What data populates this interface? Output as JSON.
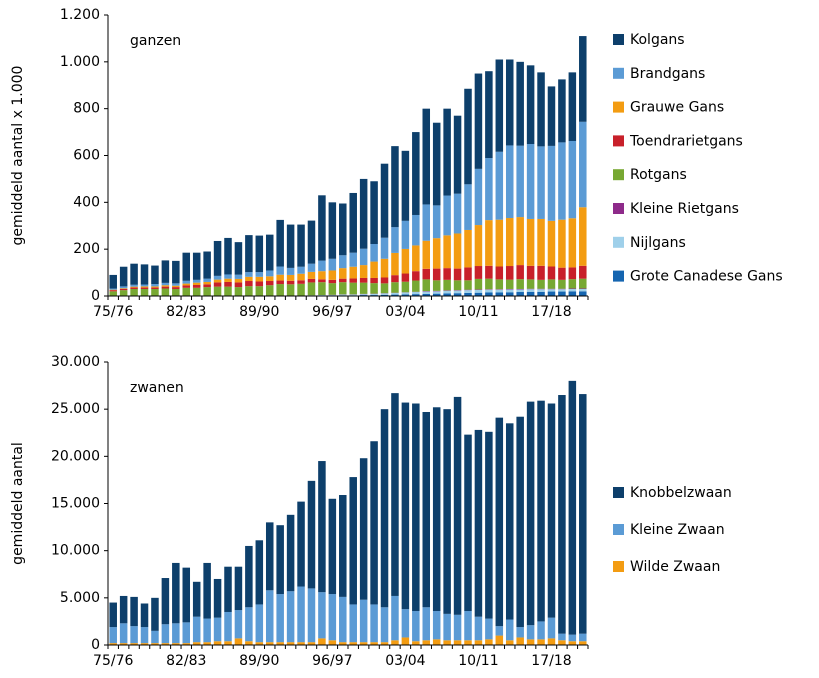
{
  "chart_data": [
    {
      "type": "stacked_bar",
      "annotation": "ganzen",
      "y_label": "gemiddeld aantal x 1.000",
      "categories": [
        "75/76",
        null,
        null,
        null,
        null,
        null,
        null,
        "82/83",
        null,
        null,
        null,
        null,
        null,
        null,
        "89/90",
        null,
        null,
        null,
        null,
        null,
        null,
        "96/97",
        null,
        null,
        null,
        null,
        null,
        null,
        "03/04",
        null,
        null,
        null,
        null,
        null,
        null,
        "10/11",
        null,
        null,
        null,
        null,
        null,
        null,
        "17/18",
        null,
        null,
        null
      ],
      "ylim": [
        0,
        1200
      ],
      "yticks": [
        0,
        200,
        400,
        600,
        800,
        {
          "value": 1000,
          "label": "1.000"
        },
        {
          "value": 1200,
          "label": "1.200"
        }
      ],
      "series": [
        {
          "name": "Kolgans",
          "color": "#0d3f6b",
          "values": [
            58,
            84,
            90,
            86,
            79,
            96,
            96,
            120,
            116,
            116,
            149,
            156,
            139,
            158,
            156,
            153,
            199,
            185,
            180,
            184,
            279,
            241,
            221,
            255,
            298,
            268,
            316,
            346,
            299,
            354,
            409,
            353,
            371,
            333,
            408,
            407,
            371,
            394,
            367,
            358,
            336,
            316,
            254,
            269,
            293,
            366
          ]
        },
        {
          "name": "Brandgans",
          "color": "#5b9bd5",
          "values": [
            5,
            8,
            8,
            8,
            10,
            10,
            10,
            12,
            12,
            14,
            16,
            18,
            18,
            20,
            20,
            25,
            35,
            30,
            30,
            35,
            45,
            50,
            55,
            60,
            70,
            75,
            90,
            110,
            120,
            130,
            155,
            140,
            170,
            170,
            195,
            240,
            265,
            290,
            310,
            305,
            320,
            310,
            320,
            330,
            330,
            365
          ]
        },
        {
          "name": "Grauwe Gans",
          "color": "#f39c12",
          "values": [
            2,
            3,
            4,
            5,
            5,
            6,
            6,
            8,
            10,
            10,
            12,
            14,
            15,
            18,
            20,
            20,
            25,
            25,
            28,
            30,
            35,
            40,
            45,
            50,
            55,
            70,
            80,
            95,
            105,
            110,
            120,
            130,
            140,
            150,
            160,
            175,
            195,
            200,
            205,
            205,
            200,
            200,
            195,
            205,
            210,
            250
          ]
        },
        {
          "name": "Toendrarietgans",
          "color": "#c8202a",
          "values": [
            5,
            5,
            6,
            6,
            6,
            8,
            8,
            10,
            12,
            12,
            18,
            20,
            20,
            22,
            20,
            18,
            15,
            15,
            15,
            15,
            12,
            14,
            15,
            18,
            20,
            22,
            25,
            30,
            35,
            40,
            45,
            50,
            50,
            50,
            55,
            55,
            55,
            55,
            58,
            60,
            58,
            60,
            55,
            52,
            50,
            55
          ]
        },
        {
          "name": "Rotgans",
          "color": "#77a832",
          "values": [
            20,
            25,
            30,
            30,
            30,
            32,
            30,
            35,
            35,
            38,
            40,
            40,
            38,
            42,
            42,
            45,
            50,
            48,
            50,
            55,
            55,
            50,
            52,
            50,
            48,
            45,
            42,
            45,
            45,
            48,
            50,
            45,
            45,
            42,
            40,
            45,
            45,
            42,
            40,
            42,
            40,
            38,
            40,
            38,
            40,
            42
          ]
        },
        {
          "name": "Kleine Rietgans",
          "color": "#8e2a8a",
          "values": [
            0,
            0,
            0,
            0,
            0,
            0,
            0,
            0,
            0,
            0,
            0,
            0,
            0,
            0,
            0,
            0,
            0,
            0,
            0,
            0,
            0,
            1,
            1,
            1,
            1,
            1,
            1,
            1,
            1,
            1,
            2,
            2,
            2,
            2,
            2,
            2,
            2,
            2,
            2,
            2,
            2,
            2,
            2,
            2,
            2,
            2
          ]
        },
        {
          "name": "Nijlgans",
          "color": "#9fd0ea",
          "values": [
            0,
            0,
            0,
            0,
            0,
            0,
            0,
            0,
            0,
            0,
            0,
            0,
            0,
            0,
            0,
            0,
            0,
            1,
            1,
            1,
            2,
            2,
            3,
            3,
            4,
            5,
            6,
            7,
            8,
            9,
            10,
            10,
            11,
            11,
            12,
            12,
            12,
            12,
            12,
            11,
            11,
            11,
            10,
            10,
            10,
            10
          ]
        },
        {
          "name": "Grote Canadese Gans",
          "color": "#1565b0",
          "values": [
            0,
            0,
            0,
            0,
            0,
            0,
            0,
            0,
            0,
            0,
            0,
            0,
            0,
            0,
            0,
            1,
            1,
            1,
            1,
            2,
            2,
            2,
            3,
            3,
            4,
            4,
            5,
            6,
            7,
            8,
            9,
            10,
            11,
            12,
            13,
            14,
            15,
            15,
            16,
            17,
            18,
            18,
            19,
            19,
            20,
            20
          ]
        }
      ]
    },
    {
      "type": "stacked_bar",
      "annotation": "zwanen",
      "y_label": "gemiddeld aantal",
      "categories": [
        "75/76",
        null,
        null,
        null,
        null,
        null,
        null,
        "82/83",
        null,
        null,
        null,
        null,
        null,
        null,
        "89/90",
        null,
        null,
        null,
        null,
        null,
        null,
        "96/97",
        null,
        null,
        null,
        null,
        null,
        null,
        "03/04",
        null,
        null,
        null,
        null,
        null,
        null,
        "10/11",
        null,
        null,
        null,
        null,
        null,
        null,
        "17/18",
        null,
        null,
        null
      ],
      "ylim": [
        0,
        30000
      ],
      "yticks": [
        0,
        {
          "value": 5000,
          "label": "5.000"
        },
        {
          "value": 10000,
          "label": "10.000"
        },
        {
          "value": 15000,
          "label": "15.000"
        },
        {
          "value": 20000,
          "label": "20.000"
        },
        {
          "value": 25000,
          "label": "25.000"
        },
        {
          "value": 30000,
          "label": "30.000"
        }
      ],
      "series": [
        {
          "name": "Knobbelzwaan",
          "color": "#0d3f6b",
          "values": [
            2600,
            2900,
            3100,
            2500,
            3500,
            4900,
            6400,
            5800,
            3700,
            5900,
            4100,
            4800,
            4600,
            6500,
            6800,
            7200,
            7300,
            8100,
            9000,
            11400,
            13900,
            10100,
            10800,
            13500,
            15000,
            17300,
            21000,
            21500,
            21900,
            22000,
            20700,
            21600,
            21700,
            23100,
            18700,
            19800,
            19800,
            22100,
            20800,
            22300,
            23700,
            23400,
            22700,
            25300,
            26900,
            25400
          ]
        },
        {
          "name": "Kleine Zwaan",
          "color": "#5b9bd5",
          "values": [
            1700,
            2100,
            1800,
            1700,
            1300,
            2000,
            2100,
            2200,
            2700,
            2500,
            2500,
            3100,
            3000,
            3600,
            4000,
            5500,
            5100,
            5400,
            5900,
            5700,
            4900,
            4900,
            4800,
            4000,
            4500,
            4000,
            3700,
            4700,
            3000,
            3200,
            3500,
            3000,
            2800,
            2700,
            3100,
            2500,
            2200,
            1000,
            2200,
            1100,
            1500,
            1900,
            2200,
            700,
            700,
            800
          ]
        },
        {
          "name": "Wilde Zwaan",
          "color": "#f39c12",
          "values": [
            200,
            200,
            200,
            200,
            200,
            200,
            200,
            200,
            300,
            300,
            400,
            400,
            700,
            400,
            300,
            300,
            300,
            300,
            300,
            300,
            700,
            500,
            300,
            300,
            300,
            300,
            300,
            500,
            800,
            400,
            500,
            600,
            500,
            500,
            500,
            500,
            600,
            1000,
            500,
            800,
            600,
            600,
            700,
            500,
            400,
            400
          ]
        }
      ]
    }
  ]
}
